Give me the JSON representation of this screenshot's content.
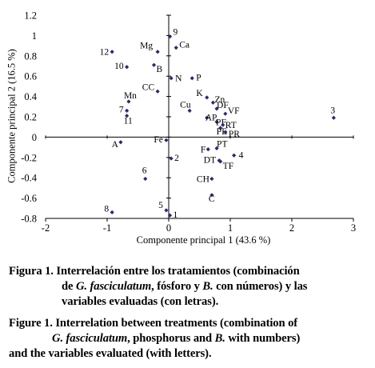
{
  "chart_data": {
    "type": "scatter",
    "xlabel": "Componente principal 1 (43.6 %)",
    "ylabel": "Componente principal 2 (16.5 %)",
    "xlim": [
      -2,
      3
    ],
    "ylim": [
      -0.8,
      1.2
    ],
    "xticks": [
      "-2",
      "-1",
      "0",
      "1",
      "2",
      "3"
    ],
    "yticks": [
      "1.2",
      "1",
      "0.8",
      "0.6",
      "0.4",
      "0.2",
      "0",
      "-0.2",
      "-0.4",
      "-0.6",
      "-0.8"
    ],
    "grid": false,
    "points": [
      {
        "label": "9",
        "x": 0.02,
        "y": 0.99
      },
      {
        "label": "Ca",
        "x": 0.12,
        "y": 0.88
      },
      {
        "label": "Mg",
        "x": -0.18,
        "y": 0.84
      },
      {
        "label": "12",
        "x": -0.92,
        "y": 0.84
      },
      {
        "label": "B",
        "x": -0.24,
        "y": 0.71
      },
      {
        "label": "10",
        "x": -0.68,
        "y": 0.69
      },
      {
        "label": "N",
        "x": 0.04,
        "y": 0.58
      },
      {
        "label": "P",
        "x": 0.38,
        "y": 0.58
      },
      {
        "label": "CC",
        "x": -0.18,
        "y": 0.45
      },
      {
        "label": "K",
        "x": 0.62,
        "y": 0.39
      },
      {
        "label": "Zn",
        "x": 0.72,
        "y": 0.34
      },
      {
        "label": "Mn",
        "x": -0.65,
        "y": 0.35
      },
      {
        "label": "Cu",
        "x": 0.34,
        "y": 0.26
      },
      {
        "label": "DF",
        "x": 0.78,
        "y": 0.28
      },
      {
        "label": "VF",
        "x": 0.92,
        "y": 0.23
      },
      {
        "label": "AP",
        "x": 0.62,
        "y": 0.19
      },
      {
        "label": "7",
        "x": -0.68,
        "y": 0.26
      },
      {
        "label": "11",
        "x": -0.68,
        "y": 0.21
      },
      {
        "label": "PF",
        "x": 0.78,
        "y": 0.15
      },
      {
        "label": "RT",
        "x": 0.88,
        "y": 0.12
      },
      {
        "label": "PE",
        "x": 0.84,
        "y": 0.09
      },
      {
        "label": "PR",
        "x": 0.92,
        "y": 0.05
      },
      {
        "label": "3",
        "x": 2.68,
        "y": 0.19
      },
      {
        "label": "A",
        "x": -0.78,
        "y": -0.05
      },
      {
        "label": "Fe",
        "x": -0.04,
        "y": -0.03
      },
      {
        "label": "PT",
        "x": 0.78,
        "y": -0.11
      },
      {
        "label": "F",
        "x": 0.64,
        "y": -0.12
      },
      {
        "label": "4",
        "x": 1.06,
        "y": -0.18
      },
      {
        "label": "2",
        "x": 0.04,
        "y": -0.21
      },
      {
        "label": "DT",
        "x": 0.82,
        "y": -0.23
      },
      {
        "label": "TF",
        "x": 0.84,
        "y": -0.24
      },
      {
        "label": "6",
        "x": -0.38,
        "y": -0.41
      },
      {
        "label": "CH",
        "x": 0.7,
        "y": -0.41
      },
      {
        "label": "C",
        "x": 0.7,
        "y": -0.57
      },
      {
        "label": "8",
        "x": -0.92,
        "y": -0.74
      },
      {
        "label": "5",
        "x": -0.04,
        "y": -0.72
      },
      {
        "label": "1",
        "x": 0.02,
        "y": -0.77
      }
    ]
  },
  "caption_es": {
    "prefix": "Figura 1.",
    "line1": " Interrelación entre los tratamientos (combinación",
    "line2_a": "de ",
    "line2_i": "G. fasciculatum",
    "line2_b": ", fósforo y ",
    "line2_i2": "B.",
    "line2_c": " con números) y las",
    "line3": "variables evaluadas (con letras)."
  },
  "caption_en": {
    "prefix": "Figure 1.",
    "line1": " Interrelation between treatments (combination of",
    "line2_i": "G. fasciculatum",
    "line2_b": ", phosphorus and ",
    "line2_i2": "B.",
    "line2_c": " with numbers)",
    "line3": "and the variables evaluated (with letters)."
  },
  "colors": {
    "marker": "#2b2a6b",
    "axis": "#000000"
  }
}
